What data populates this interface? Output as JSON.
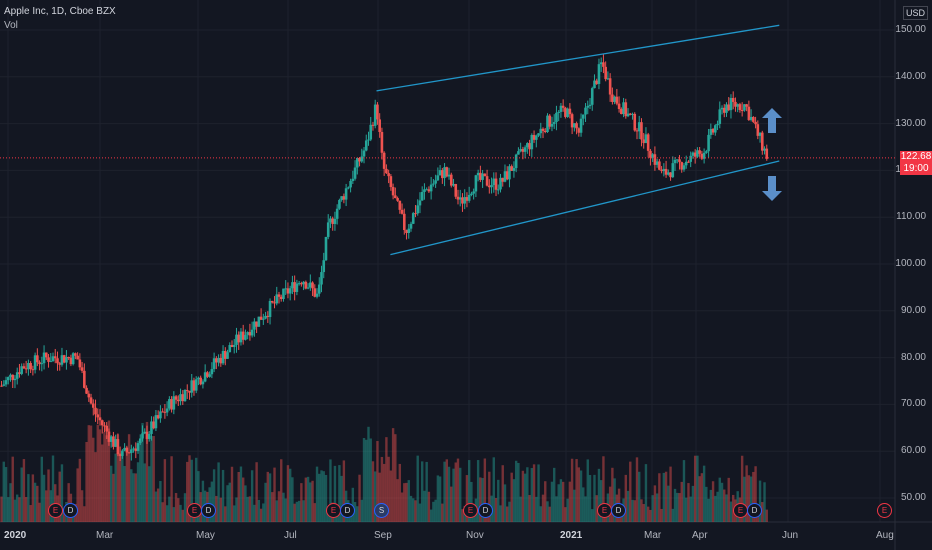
{
  "header": {
    "title": "Apple Inc, 1D, Cboe BZX",
    "vol_label": "Vol"
  },
  "currency": "USD",
  "price_scale": [
    "150.00",
    "140.00",
    "130.00",
    "120.00",
    "110.00",
    "100.00",
    "90.00",
    "80.00",
    "70.00",
    "60.00",
    "50.00"
  ],
  "last_price": {
    "price": "122.68",
    "countdown": "19:00"
  },
  "time_axis": [
    "2020",
    "Mar",
    "May",
    "Jul",
    "Sep",
    "Nov",
    "2021",
    "Mar",
    "Apr",
    "Jun",
    "Aug"
  ],
  "events": [
    "E",
    "D",
    "E",
    "D",
    "E",
    "D",
    "S",
    "E",
    "D",
    "E",
    "D",
    "E",
    "D",
    "E",
    "D",
    "E"
  ],
  "colors": {
    "up": "#26a69a",
    "down": "#ef5350",
    "channel": "#2196c9",
    "arrow": "#5b8fc9",
    "current_line": "#f23645"
  },
  "chart_data": {
    "type": "candlestick",
    "title": "Apple Inc, 1D, Cboe BZX",
    "ylim": [
      45,
      155
    ],
    "anchors": [
      [
        "2020-01-02",
        74
      ],
      [
        "2020-01-15",
        78
      ],
      [
        "2020-02-01",
        80
      ],
      [
        "2020-02-20",
        80
      ],
      [
        "2020-03-01",
        69
      ],
      [
        "2020-03-20",
        59
      ],
      [
        "2020-04-01",
        62
      ],
      [
        "2020-04-20",
        70
      ],
      [
        "2020-05-01",
        73
      ],
      [
        "2020-05-20",
        79
      ],
      [
        "2020-06-10",
        86
      ],
      [
        "2020-06-25",
        91
      ],
      [
        "2020-07-15",
        97
      ],
      [
        "2020-07-25",
        93
      ],
      [
        "2020-08-01",
        108
      ],
      [
        "2020-08-25",
        125
      ],
      [
        "2020-09-01",
        134
      ],
      [
        "2020-09-05",
        121
      ],
      [
        "2020-09-20",
        107
      ],
      [
        "2020-10-01",
        115
      ],
      [
        "2020-10-15",
        120
      ],
      [
        "2020-10-25",
        113
      ],
      [
        "2020-11-05",
        118
      ],
      [
        "2020-11-20",
        117
      ],
      [
        "2020-12-05",
        124
      ],
      [
        "2020-12-20",
        130
      ],
      [
        "2021-01-01",
        133
      ],
      [
        "2021-01-10",
        128
      ],
      [
        "2021-01-25",
        143
      ],
      [
        "2021-02-01",
        136
      ],
      [
        "2021-02-20",
        128
      ],
      [
        "2021-03-05",
        119
      ],
      [
        "2021-03-20",
        122
      ],
      [
        "2021-04-01",
        124
      ],
      [
        "2021-04-15",
        134
      ],
      [
        "2021-04-28",
        134
      ],
      [
        "2021-05-12",
        123
      ]
    ],
    "channel": {
      "upper": [
        [
          "2020-09-01",
          137
        ],
        [
          "2021-05-20",
          151
        ]
      ],
      "lower": [
        [
          "2020-09-10",
          102
        ],
        [
          "2021-05-20",
          122
        ]
      ]
    },
    "current_price": 122.68
  }
}
